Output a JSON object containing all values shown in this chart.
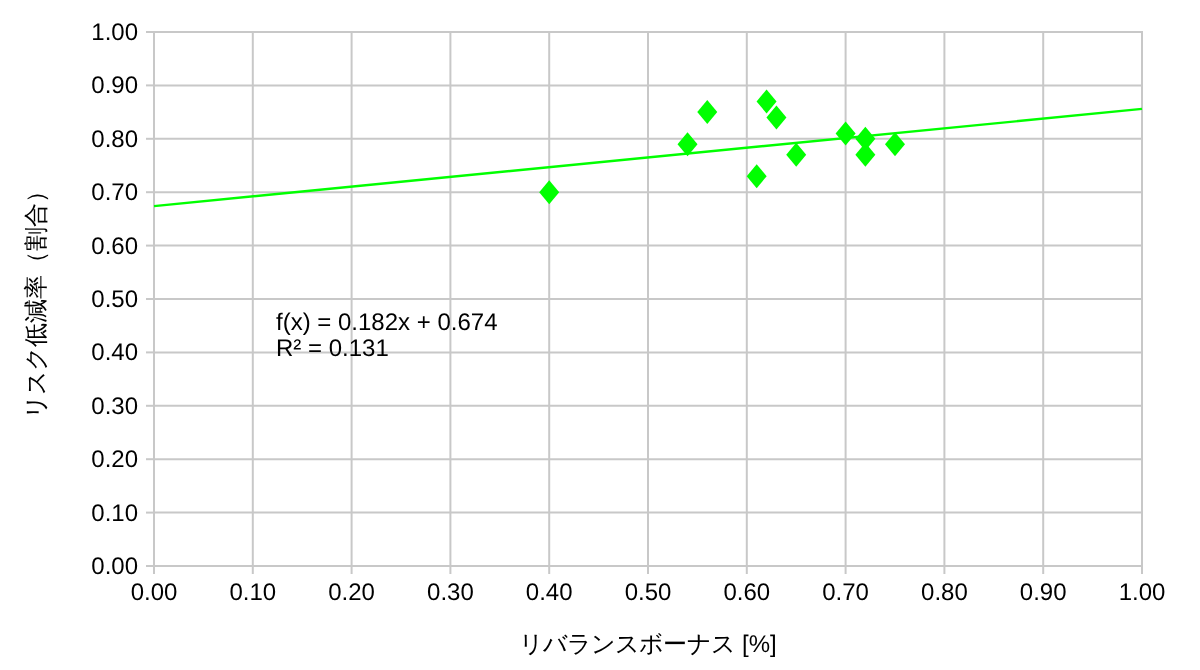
{
  "chart_data": {
    "type": "scatter",
    "xlabel": "リバランスボーナス [%]",
    "ylabel": "リスク低減率（割合）",
    "xlim": [
      0,
      1
    ],
    "ylim": [
      0,
      1
    ],
    "xticks": [
      {
        "value": 0,
        "label": "0.00"
      },
      {
        "value": 0.1,
        "label": "0.10"
      },
      {
        "value": 0.2,
        "label": "0.20"
      },
      {
        "value": 0.3,
        "label": "0.30"
      },
      {
        "value": 0.4,
        "label": "0.40"
      },
      {
        "value": 0.5,
        "label": "0.50"
      },
      {
        "value": 0.6,
        "label": "0.60"
      },
      {
        "value": 0.7,
        "label": "0.70"
      },
      {
        "value": 0.8,
        "label": "0.80"
      },
      {
        "value": 0.9,
        "label": "0.90"
      },
      {
        "value": 1,
        "label": "1.00"
      }
    ],
    "yticks": [
      {
        "value": 0,
        "label": "0.00"
      },
      {
        "value": 0.1,
        "label": "0.10"
      },
      {
        "value": 0.2,
        "label": "0.20"
      },
      {
        "value": 0.3,
        "label": "0.30"
      },
      {
        "value": 0.4,
        "label": "0.40"
      },
      {
        "value": 0.5,
        "label": "0.50"
      },
      {
        "value": 0.6,
        "label": "0.60"
      },
      {
        "value": 0.7,
        "label": "0.70"
      },
      {
        "value": 0.8,
        "label": "0.80"
      },
      {
        "value": 0.9,
        "label": "0.90"
      },
      {
        "value": 1,
        "label": "1.00"
      }
    ],
    "grid": true,
    "series": [
      {
        "type": "scatter",
        "marker": "diamond",
        "color": "#00ff00",
        "x": [
          0.4,
          0.54,
          0.56,
          0.61,
          0.62,
          0.63,
          0.65,
          0.7,
          0.72,
          0.72,
          0.75
        ],
        "values": [
          0.7,
          0.79,
          0.85,
          0.73,
          0.87,
          0.84,
          0.77,
          0.81,
          0.77,
          0.8,
          0.79
        ]
      },
      {
        "type": "line",
        "color": "#00ff00",
        "x": [
          0,
          1
        ],
        "values": [
          0.674,
          0.856
        ]
      }
    ],
    "annotations": [
      "f(x) = 0.182x + 0.674",
      "R² = 0.131"
    ]
  }
}
